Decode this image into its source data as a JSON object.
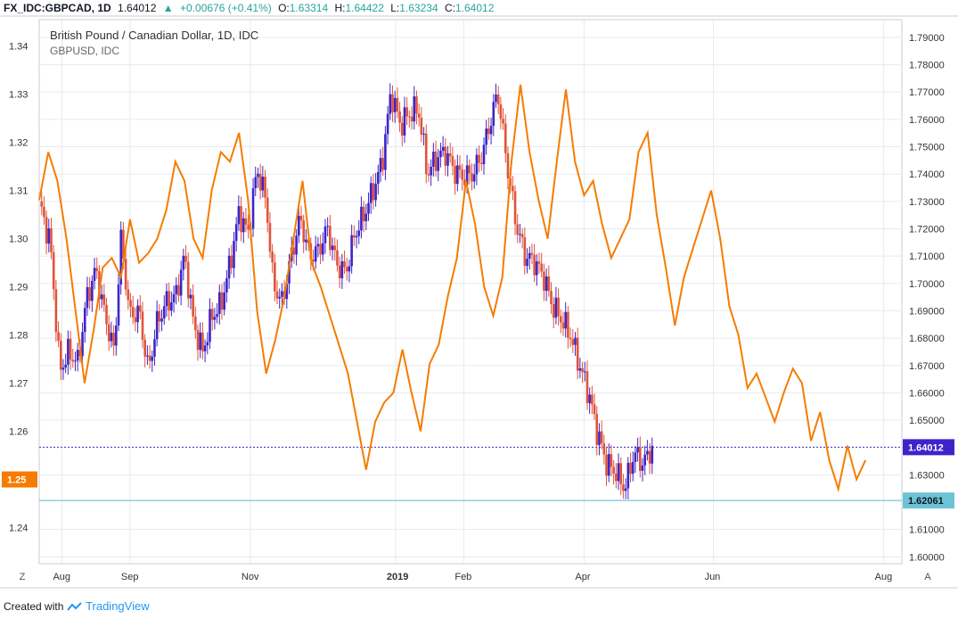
{
  "header": {
    "symbol": "FX_IDC:GBPCAD, 1D",
    "last": "1.64012",
    "arrow": "▲",
    "change": "+0.00676 (+0.41%)",
    "o_label": "O:",
    "o": "1.63314",
    "h_label": "H:",
    "h": "1.64422",
    "l_label": "L:",
    "l": "1.63234",
    "c_label": "C:",
    "c": "1.64012"
  },
  "legend": {
    "main": "British Pound / Canadian Dollar, 1D, IDC",
    "overlay": "GBPUSD, IDC"
  },
  "footer": {
    "created_with": "Created with",
    "brand": "TradingView"
  },
  "corner": {
    "left": "Z",
    "right": "A"
  },
  "colors": {
    "up": "#3d24c9",
    "down": "#e0533a",
    "overlay": "#f57c00",
    "grid": "#e6eaf0",
    "price_line": "#3d24c9",
    "ref_line": "#5bb8d0",
    "price_badge": "#3d24c9",
    "ref_badge": "#6cc3d5",
    "overlay_badge": "#f57c00"
  },
  "chart_data": {
    "type": "candlestick+line",
    "right_axis": {
      "labels": [
        "1.79000",
        "1.78000",
        "1.77000",
        "1.76000",
        "1.75000",
        "1.74000",
        "1.73000",
        "1.72000",
        "1.71000",
        "1.70000",
        "1.69000",
        "1.68000",
        "1.67000",
        "1.66000",
        "1.65000",
        "1.64012",
        "1.63000",
        "1.62061",
        "1.61000",
        "1.60000"
      ],
      "range": [
        1.5975,
        1.7965
      ]
    },
    "left_axis": {
      "labels": [
        "1.34",
        "1.33",
        "1.32",
        "1.31",
        "1.30",
        "1.29",
        "1.28",
        "1.27",
        "1.26",
        "1.25",
        "1.24"
      ],
      "range": [
        1.2325,
        1.3455
      ]
    },
    "x_labels": [
      "Aug",
      "Sep",
      "Nov",
      "2019",
      "Feb",
      "Apr",
      "Jun",
      "Aug"
    ],
    "badges": {
      "gbpcad_last": "1.64012",
      "ref_level": "1.62061",
      "gbpusd": "1.25"
    },
    "gbpcad_path": [
      [
        0,
        1.73
      ],
      [
        0.05,
        1.714
      ],
      [
        0.09,
        1.668
      ],
      [
        0.13,
        1.675
      ],
      [
        0.17,
        1.671
      ],
      [
        0.21,
        1.695
      ],
      [
        0.25,
        1.705
      ],
      [
        0.29,
        1.688
      ],
      [
        0.33,
        1.675
      ],
      [
        0.36,
        1.716
      ],
      [
        0.4,
        1.688
      ],
      [
        0.44,
        1.69
      ],
      [
        0.48,
        1.668
      ],
      [
        0.52,
        1.686
      ],
      [
        0.56,
        1.693
      ],
      [
        0.6,
        1.695
      ],
      [
        0.64,
        1.71
      ],
      [
        0.68,
        1.685
      ],
      [
        0.72,
        1.675
      ],
      [
        0.76,
        1.688
      ],
      [
        0.8,
        1.692
      ],
      [
        0.84,
        1.707
      ],
      [
        0.88,
        1.726
      ],
      [
        0.92,
        1.718
      ],
      [
        0.96,
        1.742
      ],
      [
        1.0,
        1.73
      ],
      [
        1.03,
        1.7
      ],
      [
        1.07,
        1.693
      ],
      [
        1.11,
        1.71
      ],
      [
        1.15,
        1.724
      ],
      [
        1.19,
        1.71
      ],
      [
        1.23,
        1.712
      ],
      [
        1.27,
        1.72
      ],
      [
        1.31,
        1.707
      ],
      [
        1.35,
        1.704
      ],
      [
        1.39,
        1.718
      ],
      [
        1.43,
        1.725
      ],
      [
        1.47,
        1.734
      ],
      [
        1.51,
        1.744
      ],
      [
        1.55,
        1.77
      ],
      [
        1.59,
        1.758
      ],
      [
        1.63,
        1.762
      ],
      [
        1.67,
        1.764
      ],
      [
        1.71,
        1.74
      ],
      [
        1.75,
        1.746
      ],
      [
        1.79,
        1.748
      ],
      [
        1.83,
        1.741
      ],
      [
        1.87,
        1.739
      ],
      [
        1.91,
        1.74
      ],
      [
        1.95,
        1.747
      ],
      [
        1.99,
        1.76
      ],
      [
        2.02,
        1.77
      ],
      [
        2.06,
        1.744
      ],
      [
        2.1,
        1.722
      ],
      [
        2.14,
        1.71
      ],
      [
        2.18,
        1.708
      ],
      [
        2.22,
        1.703
      ],
      [
        2.26,
        1.692
      ],
      [
        2.3,
        1.687
      ],
      [
        2.34,
        1.681
      ],
      [
        2.38,
        1.67
      ],
      [
        2.42,
        1.66
      ],
      [
        2.46,
        1.645
      ],
      [
        2.5,
        1.634
      ],
      [
        2.54,
        1.631
      ],
      [
        2.58,
        1.625
      ],
      [
        2.62,
        1.638
      ],
      [
        2.66,
        1.634
      ],
      [
        2.7,
        1.64
      ]
    ],
    "gbpusd_path": [
      [
        0,
        1.308
      ],
      [
        0.04,
        1.318
      ],
      [
        0.08,
        1.312
      ],
      [
        0.12,
        1.3
      ],
      [
        0.16,
        1.285
      ],
      [
        0.2,
        1.27
      ],
      [
        0.24,
        1.281
      ],
      [
        0.28,
        1.294
      ],
      [
        0.32,
        1.296
      ],
      [
        0.36,
        1.292
      ],
      [
        0.4,
        1.304
      ],
      [
        0.44,
        1.295
      ],
      [
        0.48,
        1.297
      ],
      [
        0.52,
        1.3
      ],
      [
        0.56,
        1.306
      ],
      [
        0.6,
        1.316
      ],
      [
        0.64,
        1.312
      ],
      [
        0.68,
        1.3
      ],
      [
        0.72,
        1.296
      ],
      [
        0.76,
        1.31
      ],
      [
        0.8,
        1.318
      ],
      [
        0.84,
        1.316
      ],
      [
        0.88,
        1.322
      ],
      [
        0.92,
        1.308
      ],
      [
        0.96,
        1.285
      ],
      [
        1.0,
        1.272
      ],
      [
        1.04,
        1.279
      ],
      [
        1.08,
        1.288
      ],
      [
        1.12,
        1.3
      ],
      [
        1.16,
        1.312
      ],
      [
        1.2,
        1.295
      ],
      [
        1.24,
        1.29
      ],
      [
        1.28,
        1.284
      ],
      [
        1.32,
        1.278
      ],
      [
        1.36,
        1.272
      ],
      [
        1.4,
        1.262
      ],
      [
        1.44,
        1.252
      ],
      [
        1.48,
        1.262
      ],
      [
        1.52,
        1.266
      ],
      [
        1.56,
        1.268
      ],
      [
        1.6,
        1.277
      ],
      [
        1.64,
        1.268
      ],
      [
        1.68,
        1.26
      ],
      [
        1.72,
        1.274
      ],
      [
        1.76,
        1.278
      ],
      [
        1.8,
        1.288
      ],
      [
        1.84,
        1.296
      ],
      [
        1.88,
        1.312
      ],
      [
        1.92,
        1.303
      ],
      [
        1.96,
        1.29
      ],
      [
        2.0,
        1.284
      ],
      [
        2.04,
        1.292
      ],
      [
        2.08,
        1.316
      ],
      [
        2.12,
        1.332
      ],
      [
        2.16,
        1.318
      ],
      [
        2.2,
        1.308
      ],
      [
        2.24,
        1.3
      ],
      [
        2.28,
        1.316
      ],
      [
        2.32,
        1.331
      ],
      [
        2.36,
        1.316
      ],
      [
        2.4,
        1.309
      ],
      [
        2.44,
        1.312
      ],
      [
        2.48,
        1.303
      ],
      [
        2.52,
        1.296
      ],
      [
        2.56,
        1.3
      ],
      [
        2.6,
        1.304
      ],
      [
        2.64,
        1.318
      ],
      [
        2.68,
        1.322
      ],
      [
        2.72,
        1.305
      ],
      [
        2.76,
        1.294
      ],
      [
        2.8,
        1.282
      ],
      [
        2.84,
        1.292
      ],
      [
        2.88,
        1.298
      ],
      [
        2.92,
        1.304
      ],
      [
        2.96,
        1.31
      ],
      [
        3.0,
        1.3
      ],
      [
        3.04,
        1.286
      ],
      [
        3.08,
        1.28
      ],
      [
        3.12,
        1.269
      ],
      [
        3.16,
        1.272
      ],
      [
        3.2,
        1.267
      ],
      [
        3.24,
        1.262
      ],
      [
        3.28,
        1.268
      ],
      [
        3.32,
        1.273
      ],
      [
        3.36,
        1.27
      ],
      [
        3.4,
        1.258
      ],
      [
        3.44,
        1.264
      ],
      [
        3.48,
        1.254
      ],
      [
        3.52,
        1.248
      ],
      [
        3.56,
        1.257
      ],
      [
        3.6,
        1.25
      ],
      [
        3.64,
        1.254
      ]
    ]
  }
}
